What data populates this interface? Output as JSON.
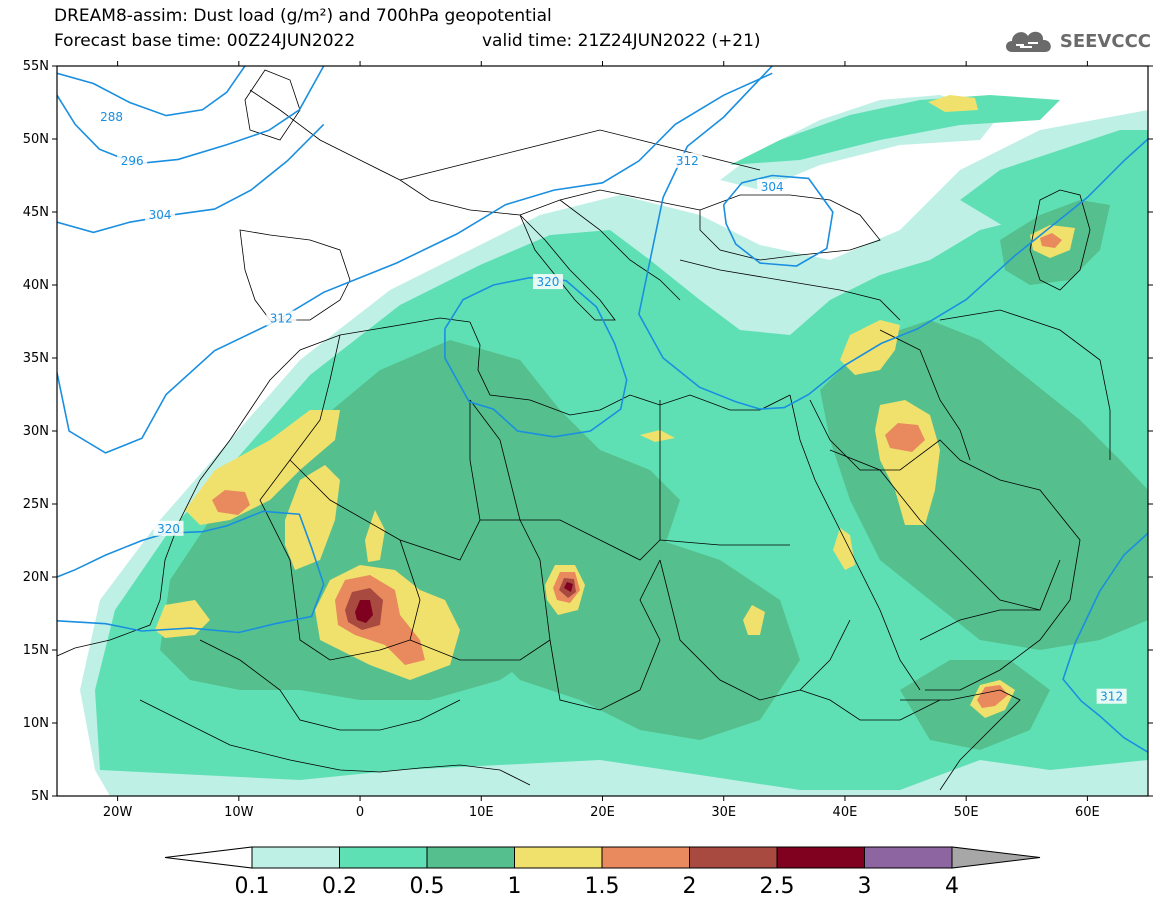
{
  "header": {
    "title": "DREAM8-assim: Dust load (g/m²) and 700hPa geopotential",
    "base_time": "Forecast base time: 00Z24JUN2022",
    "valid_time": "valid time: 21Z24JUN2022 (+21)"
  },
  "logo": {
    "text": "SEEVCCC",
    "icon": "cloud-icon"
  },
  "map": {
    "lon_range": [
      -25,
      65
    ],
    "lat_range": [
      5,
      55
    ],
    "lon_ticks": [
      {
        "value": -20,
        "label": "20W"
      },
      {
        "value": -10,
        "label": "10W"
      },
      {
        "value": 0,
        "label": "0"
      },
      {
        "value": 10,
        "label": "10E"
      },
      {
        "value": 20,
        "label": "20E"
      },
      {
        "value": 30,
        "label": "30E"
      },
      {
        "value": 40,
        "label": "40E"
      },
      {
        "value": 50,
        "label": "50E"
      },
      {
        "value": 60,
        "label": "60E"
      }
    ],
    "lat_ticks": [
      {
        "value": 55,
        "label": "55N"
      },
      {
        "value": 50,
        "label": "50N"
      },
      {
        "value": 45,
        "label": "45N"
      },
      {
        "value": 40,
        "label": "40N"
      },
      {
        "value": 35,
        "label": "35N"
      },
      {
        "value": 30,
        "label": "30N"
      },
      {
        "value": 25,
        "label": "25N"
      },
      {
        "value": 20,
        "label": "20N"
      },
      {
        "value": 15,
        "label": "15N"
      },
      {
        "value": 10,
        "label": "10N"
      },
      {
        "value": 5,
        "label": "5N"
      }
    ],
    "contour_color": "#1a8fe0",
    "contours": [
      {
        "label": "288",
        "label_at": [
          -20.5,
          51.5
        ],
        "points": [
          [
            -25,
            54.5
          ],
          [
            -22,
            53.8
          ],
          [
            -19,
            52.5
          ],
          [
            -16,
            51.6
          ],
          [
            -13,
            52.0
          ],
          [
            -11,
            53.2
          ],
          [
            -9.5,
            55
          ]
        ]
      },
      {
        "label": "296",
        "label_at": [
          -18.8,
          48.5
        ],
        "points": [
          [
            -25,
            53
          ],
          [
            -23.5,
            51
          ],
          [
            -21.5,
            49.3
          ],
          [
            -18.5,
            48.3
          ],
          [
            -15,
            48.6
          ],
          [
            -11,
            49.6
          ],
          [
            -7.5,
            50.6
          ],
          [
            -5,
            52
          ],
          [
            -3,
            55
          ]
        ]
      },
      {
        "label": "304",
        "label_at": [
          -16.5,
          44.8
        ],
        "points": [
          [
            -25,
            44.3
          ],
          [
            -22,
            43.6
          ],
          [
            -19,
            44.3
          ],
          [
            -15.5,
            44.8
          ],
          [
            -12,
            45.2
          ],
          [
            -9,
            46.5
          ],
          [
            -6,
            48.5
          ],
          [
            -3,
            51
          ]
        ]
      },
      {
        "label": "312",
        "label_at": [
          -6.5,
          37.7
        ],
        "points": [
          [
            -25,
            34
          ],
          [
            -24,
            30
          ],
          [
            -21,
            28.5
          ],
          [
            -18,
            29.5
          ],
          [
            -16,
            32.5
          ],
          [
            -12,
            35.5
          ],
          [
            -7,
            37.5
          ],
          [
            -3,
            39.5
          ],
          [
            3,
            41.5
          ],
          [
            8,
            43.5
          ],
          [
            12,
            45.5
          ],
          [
            16,
            46.5
          ],
          [
            20,
            47
          ],
          [
            23,
            48.5
          ],
          [
            26,
            51
          ],
          [
            30,
            53
          ],
          [
            34,
            54.5
          ]
        ]
      },
      {
        "label": "312",
        "label_at": [
          27,
          48.5
        ],
        "points": [
          [
            34,
            55
          ],
          [
            30,
            51.5
          ],
          [
            27,
            49.5
          ],
          [
            25,
            46
          ],
          [
            24,
            42
          ],
          [
            23,
            38
          ],
          [
            25,
            35
          ],
          [
            28,
            33
          ],
          [
            31,
            32
          ],
          [
            33,
            31.5
          ],
          [
            35,
            31.6
          ],
          [
            37,
            32.5
          ],
          [
            40,
            34.5
          ],
          [
            43,
            36
          ],
          [
            46,
            37
          ],
          [
            50,
            39
          ],
          [
            54,
            42
          ],
          [
            57,
            44
          ],
          [
            60,
            46
          ],
          [
            63,
            48.5
          ],
          [
            65,
            50
          ]
        ]
      },
      {
        "label": "304",
        "label_at": [
          34,
          46.7
        ],
        "points": [
          [
            30,
            45.5
          ],
          [
            31.5,
            47
          ],
          [
            34,
            47.5
          ],
          [
            37,
            47.3
          ],
          [
            39,
            45
          ],
          [
            38.5,
            42.5
          ],
          [
            36,
            41.3
          ],
          [
            33,
            41.5
          ],
          [
            31,
            42.8
          ],
          [
            30.2,
            44.2
          ],
          [
            30,
            45.5
          ]
        ]
      },
      {
        "label": "320",
        "label_at": [
          15.5,
          40.2
        ],
        "points": [
          [
            7,
            37
          ],
          [
            8.5,
            39
          ],
          [
            11,
            40
          ],
          [
            14,
            40.5
          ],
          [
            17,
            40.3
          ],
          [
            19.5,
            38.5
          ],
          [
            21,
            36
          ],
          [
            22,
            33.5
          ],
          [
            21.5,
            31.5
          ],
          [
            19,
            30
          ],
          [
            16,
            29.6
          ],
          [
            13,
            30
          ],
          [
            11,
            31.5
          ],
          [
            9,
            32
          ],
          [
            8,
            33.5
          ],
          [
            7,
            35
          ],
          [
            7,
            37
          ]
        ]
      },
      {
        "label": "320",
        "label_at": [
          -15.8,
          23.3
        ],
        "points": [
          [
            -25,
            17
          ],
          [
            -21,
            16.8
          ],
          [
            -18,
            16.3
          ],
          [
            -14,
            16.5
          ],
          [
            -10,
            16.2
          ],
          [
            -7,
            16.8
          ],
          [
            -4,
            17.3
          ],
          [
            -3,
            19.5
          ],
          [
            -4,
            22
          ],
          [
            -5,
            24.3
          ],
          [
            -8,
            24.5
          ],
          [
            -11,
            23.5
          ],
          [
            -13,
            23.1
          ],
          [
            -16,
            23
          ],
          [
            -18,
            22.5
          ],
          [
            -21,
            21.5
          ],
          [
            -23.5,
            20.5
          ],
          [
            -25,
            20
          ]
        ]
      },
      {
        "label": "312",
        "label_at": [
          62,
          11.8
        ],
        "points": [
          [
            65,
            23
          ],
          [
            63,
            21.5
          ],
          [
            61,
            19
          ],
          [
            59,
            15.5
          ],
          [
            58,
            13
          ],
          [
            59.5,
            11.5
          ],
          [
            61,
            10.5
          ],
          [
            63,
            9
          ],
          [
            65,
            8
          ]
        ]
      }
    ]
  },
  "colorbar": {
    "colors": [
      "#bff0e6",
      "#5fe0b4",
      "#55bf8d",
      "#f0e16c",
      "#e98a5e",
      "#a94a41",
      "#80001f",
      "#8c65a1"
    ],
    "under_color": "#ffffff",
    "over_color": "#a7a7a7",
    "tick_labels": [
      "0.1",
      "0.2",
      "0.5",
      "1",
      "1.5",
      "2",
      "2.5",
      "3",
      "4"
    ]
  }
}
